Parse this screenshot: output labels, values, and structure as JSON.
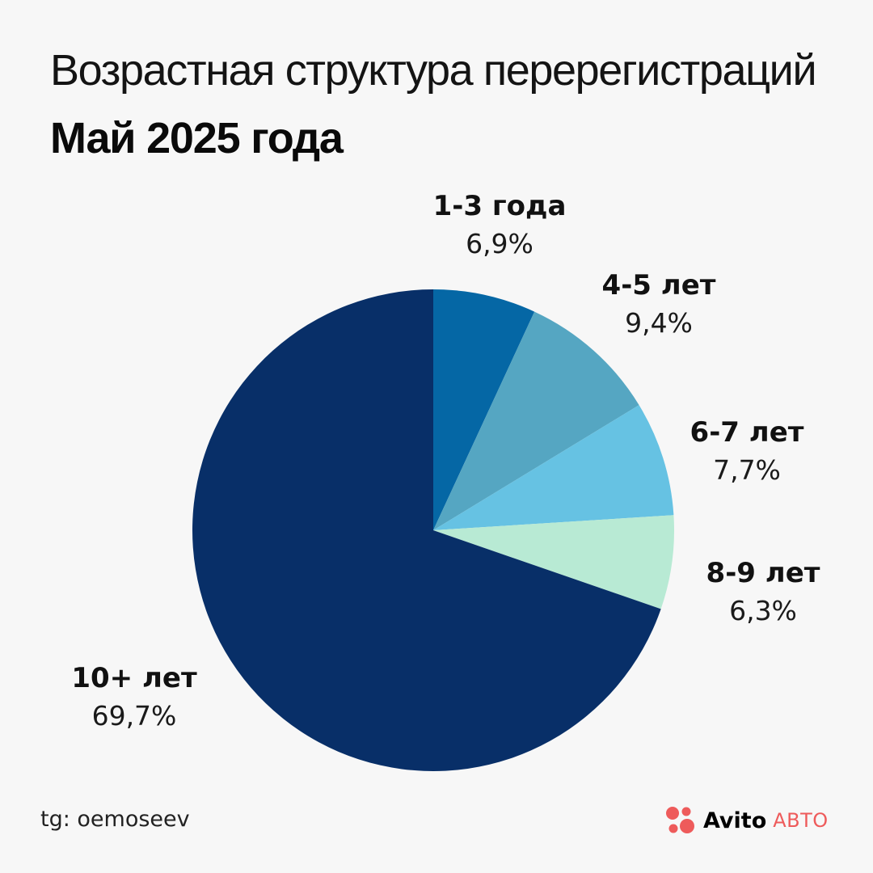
{
  "header": {
    "title": "Возрастная структура перерегистраций",
    "subtitle": "Май 2025 года"
  },
  "chart_data": {
    "type": "pie",
    "start_angle": "top",
    "direction": "clockwise",
    "slices": [
      {
        "label": "1-3 года",
        "value": 6.9,
        "value_label": "6,9%",
        "color": "#0567a5"
      },
      {
        "label": "4-5 лет",
        "value": 9.4,
        "value_label": "9,4%",
        "color": "#55a6c2"
      },
      {
        "label": "6-7 лет",
        "value": 7.7,
        "value_label": "7,7%",
        "color": "#66c2e3"
      },
      {
        "label": "8-9 лет",
        "value": 6.3,
        "value_label": "6,3%",
        "color": "#b8ead4"
      },
      {
        "label": "10+ лет",
        "value": 69.7,
        "value_label": "69,7%",
        "color": "#082f68"
      }
    ]
  },
  "footer": {
    "source": "tg: oemoseev",
    "brand": "Avito",
    "brand_sub": "АВТО",
    "brand_dot_colors": [
      "#ee5b5b",
      "#ee5b5b",
      "#ee5b5b",
      "#ee5b5b"
    ]
  }
}
